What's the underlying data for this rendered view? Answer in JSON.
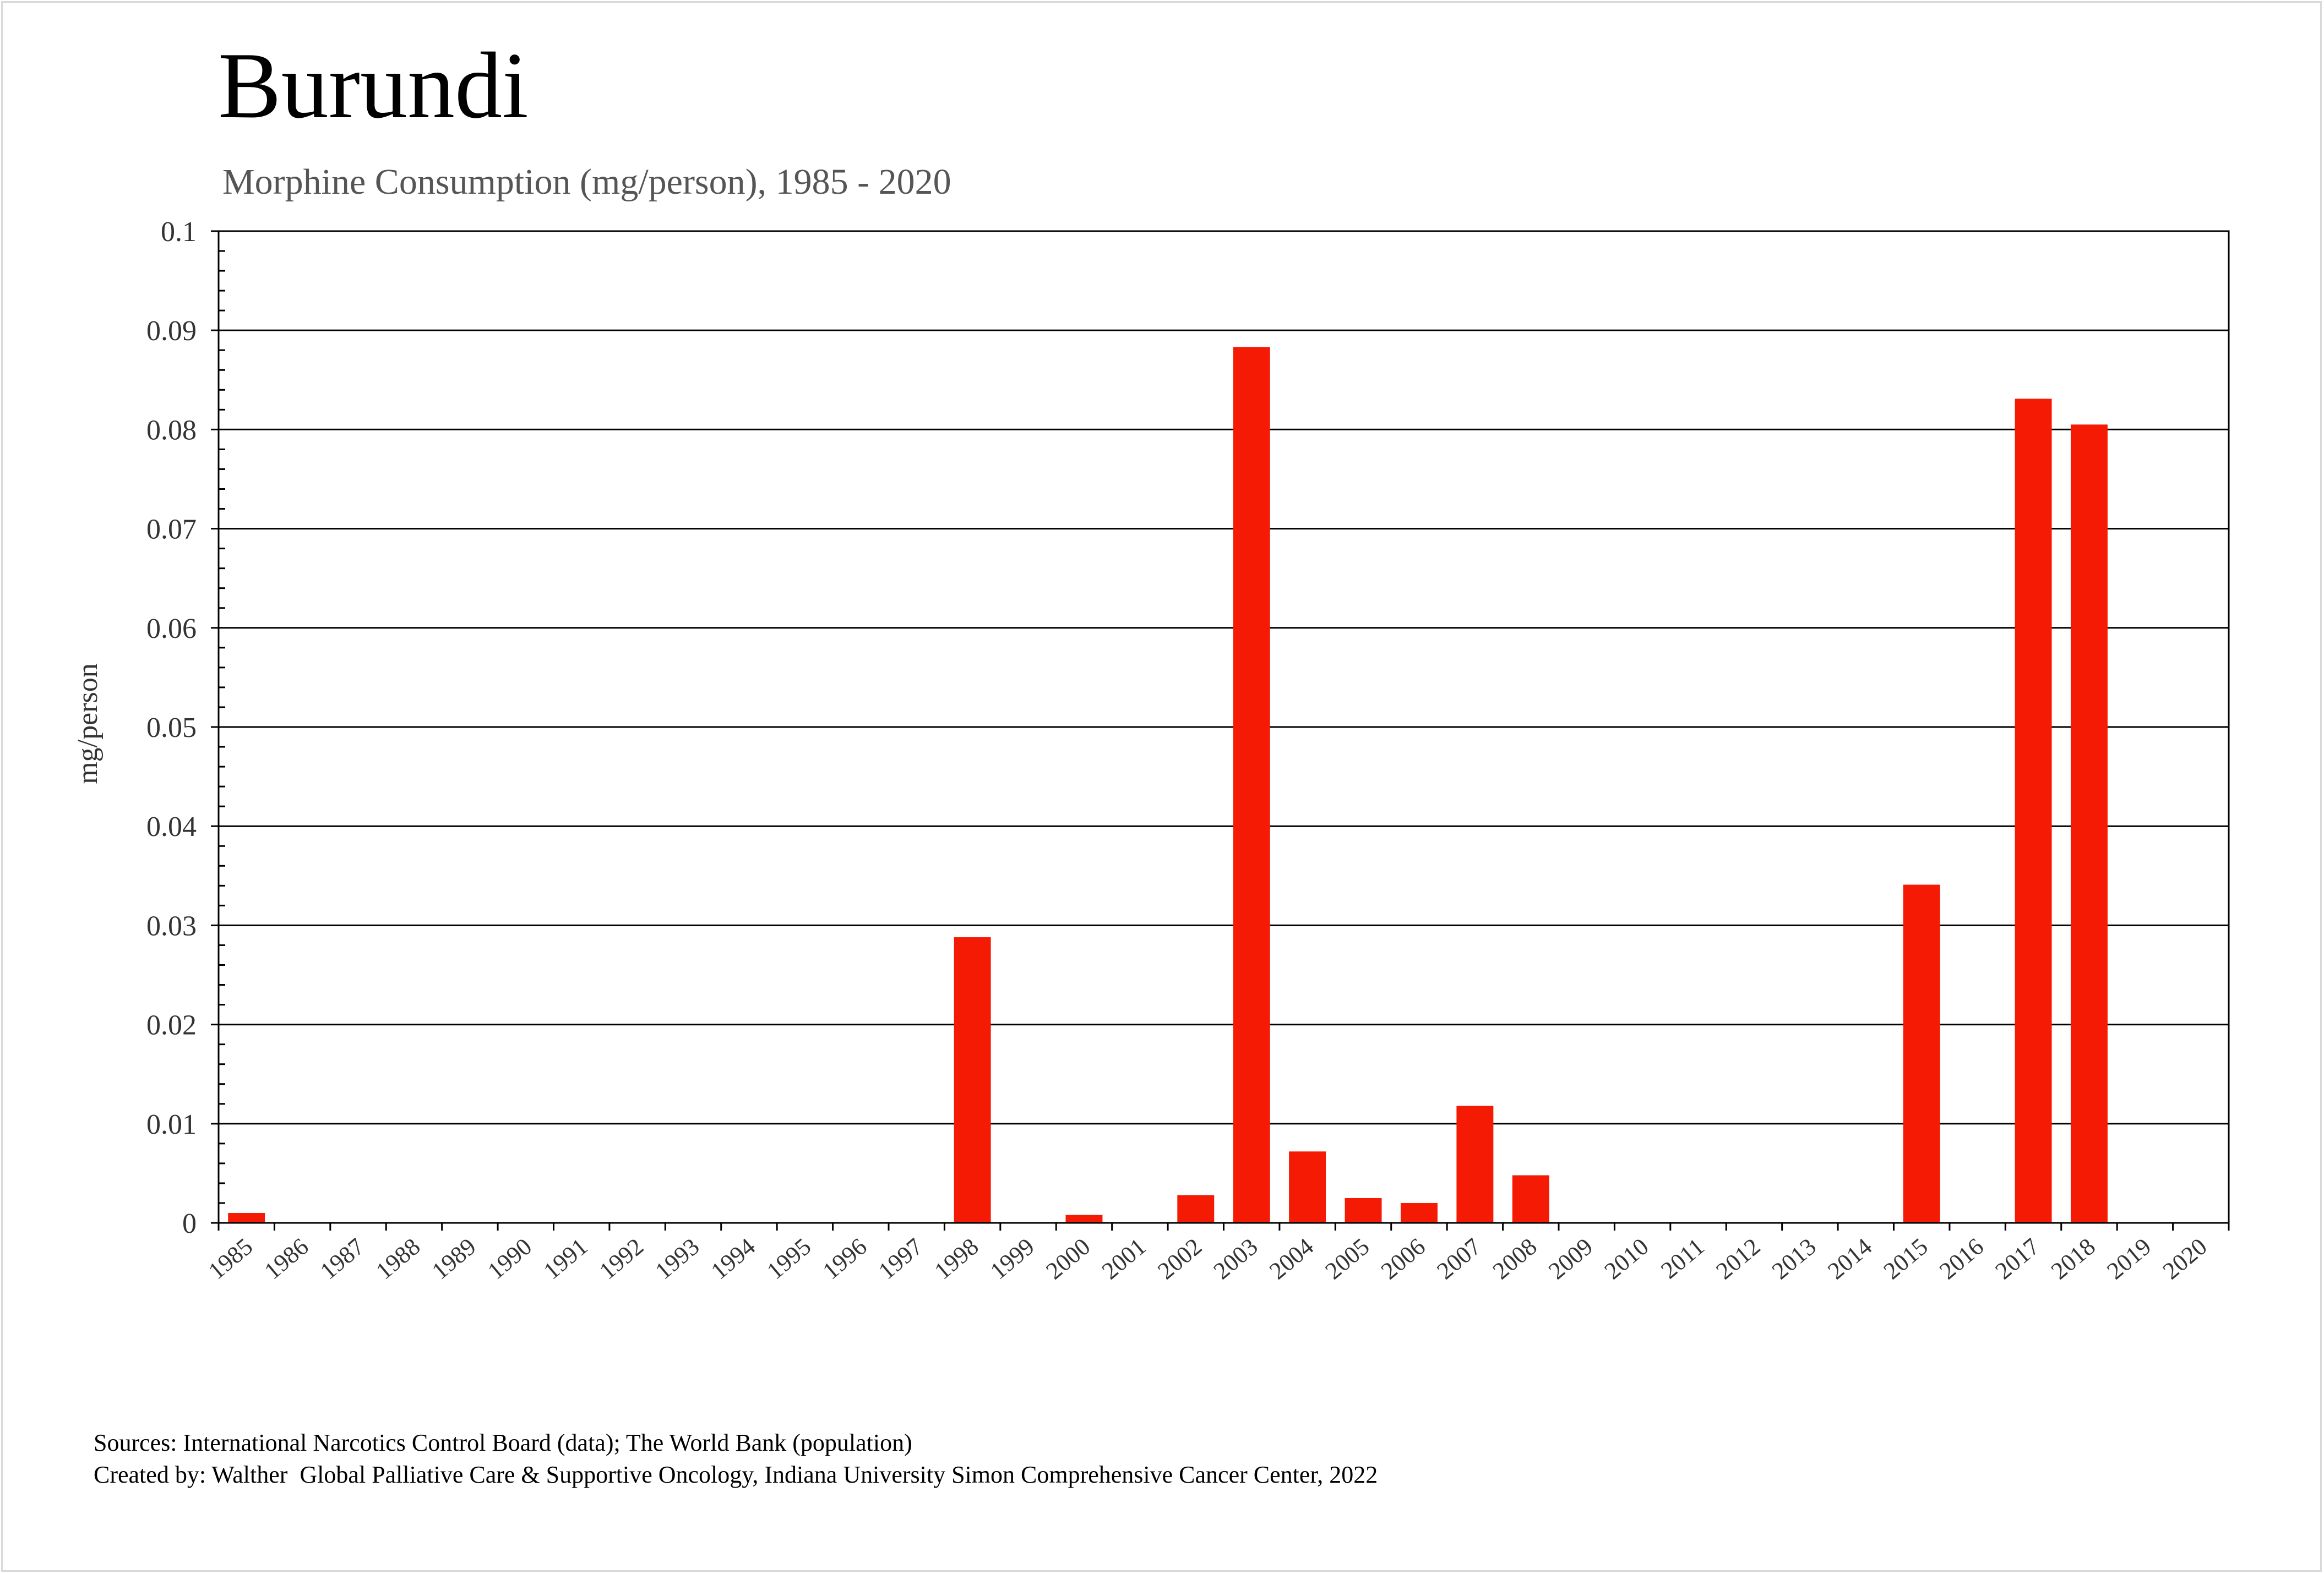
{
  "chart_data": {
    "type": "bar",
    "title": "Burundi",
    "subtitle": "Morphine Consumption (mg/person), 1985 - 2020",
    "xlabel": "",
    "ylabel": "mg/person",
    "ylim": [
      0,
      0.1
    ],
    "yticks": [
      "0",
      "0.01",
      "0.02",
      "0.03",
      "0.04",
      "0.05",
      "0.06",
      "0.07",
      "0.08",
      "0.09",
      "0.1"
    ],
    "grid": true,
    "bar_color": "#f41a04",
    "categories": [
      "1985",
      "1986",
      "1987",
      "1988",
      "1989",
      "1990",
      "1991",
      "1992",
      "1993",
      "1994",
      "1995",
      "1996",
      "1997",
      "1998",
      "1999",
      "2000",
      "2001",
      "2002",
      "2003",
      "2004",
      "2005",
      "2006",
      "2007",
      "2008",
      "2009",
      "2010",
      "2011",
      "2012",
      "2013",
      "2014",
      "2015",
      "2016",
      "2017",
      "2018",
      "2019",
      "2020"
    ],
    "values": [
      0.001,
      0,
      0,
      0,
      0,
      0,
      0,
      0,
      0,
      0,
      0,
      0,
      0,
      0.0288,
      0,
      0.0008,
      0,
      0.0028,
      0.0883,
      0.0072,
      0.0025,
      0.002,
      0.0118,
      0.0048,
      0,
      0,
      0,
      0,
      0,
      0,
      0.0341,
      0,
      0.0831,
      0.0805,
      0,
      0
    ]
  },
  "footer": {
    "sources": "Sources: International Narcotics Control Board (data); The World Bank (population)",
    "credit": "Created by: Walther  Global Palliative Care & Supportive Oncology, Indiana University Simon Comprehensive Cancer Center, 2022"
  }
}
